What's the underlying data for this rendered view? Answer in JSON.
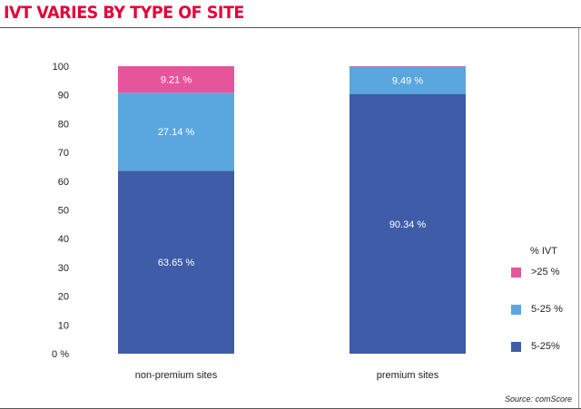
{
  "title": "IVT VARIES BY TYPE OF SITE",
  "source": "Source: comScore",
  "legend": {
    "title": "% IVT",
    "items": [
      {
        "label": ">25 %",
        "color": "#e8549c"
      },
      {
        "label": "5-25 %",
        "color": "#5aa6de"
      },
      {
        "label": "5-25%",
        "color": "#3f5ca8"
      }
    ]
  },
  "chart_data": {
    "type": "bar",
    "stacked": true,
    "categories": [
      "non-premium sites",
      "premium sites"
    ],
    "series": [
      {
        "name": "5-25%",
        "color": "#3f5ca8",
        "values": [
          63.65,
          90.34
        ],
        "labels": [
          "63.65 %",
          "90.34 %"
        ]
      },
      {
        "name": "5-25 %",
        "color": "#5aa6de",
        "values": [
          27.14,
          9.49
        ],
        "labels": [
          "27.14 %",
          "9.49 %"
        ]
      },
      {
        "name": ">25 %",
        "color": "#e8549c",
        "values": [
          9.21,
          0.17
        ],
        "labels": [
          "9.21 %",
          ""
        ]
      }
    ],
    "yticks": [
      "0 %",
      "10",
      "20",
      "30",
      "40",
      "50",
      "60",
      "70",
      "80",
      "90",
      "100"
    ],
    "ylim": [
      0,
      100
    ],
    "grid": false,
    "legend_position": "right"
  }
}
